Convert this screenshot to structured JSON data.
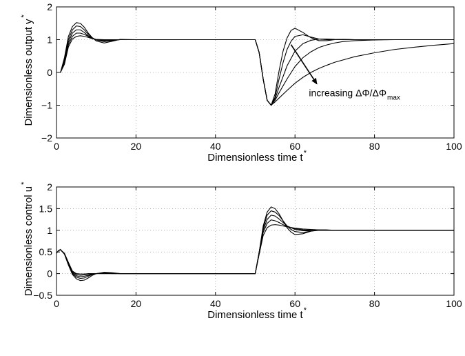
{
  "chart_data": [
    {
      "type": "line",
      "xlabel": "Dimensionless time t",
      "xlabel_sup": "*",
      "ylabel": "Dimensionless output y",
      "ylabel_sup": "*",
      "xlim": [
        0,
        100
      ],
      "ylim": [
        -2,
        2
      ],
      "xticks": [
        0,
        20,
        40,
        60,
        80,
        100
      ],
      "yticks": [
        -2,
        -1,
        0,
        1,
        2
      ],
      "xtick_labels": [
        "0",
        "20",
        "40",
        "60",
        "80",
        "100"
      ],
      "ytick_labels": [
        "−2",
        "−1",
        "0",
        "1",
        "2"
      ],
      "grid": true,
      "annotation": {
        "text": "increasing ΔΦ/ΔΦ",
        "subscript": "max",
        "arrow_from": [
          59,
          0.85
        ],
        "arrow_to": [
          65.5,
          -0.35
        ]
      },
      "series": [
        {
          "x": [
            0,
            1,
            2,
            3,
            4,
            5,
            6,
            7,
            8,
            9,
            10,
            12,
            14,
            16,
            20,
            30,
            50,
            51,
            52,
            53,
            54,
            55,
            56,
            57,
            58,
            59,
            60,
            62,
            64,
            66,
            68,
            70,
            72,
            75,
            80,
            85,
            90,
            100
          ],
          "y": [
            0,
            0,
            0.45,
            1.1,
            1.4,
            1.52,
            1.5,
            1.38,
            1.2,
            1.06,
            0.96,
            0.9,
            0.95,
            1.01,
            1.0,
            1.0,
            1.0,
            0.6,
            -0.2,
            -0.85,
            -1.0,
            -0.65,
            0.05,
            0.65,
            1.05,
            1.28,
            1.35,
            1.22,
            1.06,
            0.97,
            0.97,
            1.0,
            1.01,
            1.0,
            1.0,
            1.0,
            1.0,
            1.0
          ]
        },
        {
          "x": [
            0,
            1,
            2,
            3,
            4,
            5,
            6,
            7,
            8,
            9,
            10,
            12,
            14,
            16,
            20,
            30,
            50,
            51,
            52,
            53,
            54,
            55,
            56,
            57,
            58,
            59,
            60,
            62,
            64,
            66,
            68,
            70,
            75,
            80,
            90,
            100
          ],
          "y": [
            0,
            0,
            0.4,
            1.0,
            1.3,
            1.42,
            1.4,
            1.3,
            1.16,
            1.06,
            0.99,
            0.94,
            0.97,
            1.0,
            1.0,
            1.0,
            1.0,
            0.6,
            -0.2,
            -0.85,
            -1.0,
            -0.75,
            -0.2,
            0.3,
            0.7,
            0.95,
            1.1,
            1.15,
            1.08,
            1.02,
            1.0,
            1.0,
            1.0,
            1.0,
            1.0,
            1.0
          ]
        },
        {
          "x": [
            0,
            1,
            2,
            3,
            4,
            5,
            6,
            7,
            8,
            9,
            10,
            12,
            14,
            16,
            20,
            30,
            50,
            51,
            52,
            53,
            54,
            55,
            56,
            58,
            60,
            62,
            64,
            66,
            68,
            70,
            75,
            80,
            90,
            100
          ],
          "y": [
            0,
            0,
            0.35,
            0.92,
            1.2,
            1.3,
            1.3,
            1.22,
            1.12,
            1.05,
            1.0,
            0.97,
            0.98,
            1.0,
            1.0,
            1.0,
            1.0,
            0.6,
            -0.2,
            -0.85,
            -1.0,
            -0.8,
            -0.45,
            0.2,
            0.65,
            0.88,
            0.98,
            1.02,
            1.02,
            1.01,
            1.0,
            1.0,
            1.0,
            1.0
          ]
        },
        {
          "x": [
            0,
            1,
            2,
            3,
            4,
            5,
            6,
            7,
            8,
            9,
            10,
            12,
            14,
            16,
            20,
            30,
            50,
            51,
            52,
            53,
            54,
            55,
            56,
            58,
            60,
            62,
            64,
            66,
            68,
            70,
            72,
            75,
            80,
            85,
            90,
            100
          ],
          "y": [
            0,
            0,
            0.3,
            0.85,
            1.1,
            1.2,
            1.2,
            1.16,
            1.1,
            1.04,
            1.0,
            0.99,
            1.0,
            1.0,
            1.0,
            1.0,
            1.0,
            0.6,
            -0.2,
            -0.85,
            -1.0,
            -0.85,
            -0.62,
            -0.2,
            0.18,
            0.45,
            0.63,
            0.76,
            0.84,
            0.9,
            0.94,
            0.97,
            0.99,
            1.0,
            1.0,
            1.0
          ]
        },
        {
          "x": [
            0,
            1,
            2,
            3,
            4,
            5,
            6,
            7,
            8,
            9,
            10,
            12,
            14,
            16,
            20,
            30,
            50,
            51,
            52,
            53,
            54,
            55,
            56,
            58,
            60,
            62,
            64,
            66,
            68,
            70,
            75,
            80,
            85,
            90,
            95,
            100
          ],
          "y": [
            0,
            0,
            0.25,
            0.78,
            1.02,
            1.1,
            1.12,
            1.1,
            1.07,
            1.03,
            1.01,
            1.0,
            1.0,
            1.0,
            1.0,
            1.0,
            1.0,
            0.6,
            -0.2,
            -0.85,
            -1.0,
            -0.9,
            -0.78,
            -0.55,
            -0.33,
            -0.15,
            0.0,
            0.12,
            0.22,
            0.31,
            0.48,
            0.6,
            0.7,
            0.77,
            0.83,
            0.88
          ]
        }
      ]
    },
    {
      "type": "line",
      "xlabel": "Dimensionless time t",
      "xlabel_sup": "*",
      "ylabel": "Dimensionless control u",
      "ylabel_sup": "*",
      "xlim": [
        0,
        100
      ],
      "ylim": [
        -0.5,
        2
      ],
      "xticks": [
        0,
        20,
        40,
        60,
        80,
        100
      ],
      "yticks": [
        -0.5,
        0,
        0.5,
        1,
        1.5,
        2
      ],
      "xtick_labels": [
        "0",
        "20",
        "40",
        "60",
        "80",
        "100"
      ],
      "ytick_labels": [
        "−0.5",
        "0",
        "0.5",
        "1",
        "1.5",
        "2"
      ],
      "grid": true,
      "series": [
        {
          "x": [
            0,
            0.5,
            1,
            2,
            3,
            4,
            5,
            6,
            7,
            8,
            9,
            10,
            12,
            14,
            16,
            18,
            20,
            30,
            50,
            51,
            52,
            53,
            54,
            55,
            56,
            57,
            58,
            59,
            60,
            62,
            64,
            66,
            68,
            70,
            75,
            80,
            90,
            100
          ],
          "y": [
            0.47,
            0.53,
            0.56,
            0.45,
            0.2,
            -0.02,
            -0.12,
            -0.16,
            -0.15,
            -0.1,
            -0.04,
            0.0,
            0.03,
            0.02,
            0.0,
            0.0,
            0.0,
            0.0,
            0.0,
            0.5,
            1.1,
            1.42,
            1.54,
            1.5,
            1.38,
            1.22,
            1.06,
            0.96,
            0.9,
            0.92,
            0.98,
            1.01,
            1.01,
            1.0,
            1.0,
            1.0,
            1.0,
            1.0
          ]
        },
        {
          "x": [
            0,
            0.5,
            1,
            2,
            3,
            4,
            5,
            6,
            7,
            8,
            9,
            10,
            12,
            14,
            16,
            20,
            30,
            50,
            51,
            52,
            53,
            54,
            55,
            56,
            57,
            58,
            59,
            60,
            62,
            64,
            66,
            70,
            75,
            80,
            90,
            100
          ],
          "y": [
            0.47,
            0.53,
            0.55,
            0.45,
            0.2,
            0.0,
            -0.08,
            -0.11,
            -0.1,
            -0.06,
            -0.02,
            0.0,
            0.02,
            0.01,
            0.0,
            0.0,
            0.0,
            0.0,
            0.5,
            1.05,
            1.35,
            1.45,
            1.42,
            1.34,
            1.22,
            1.1,
            1.02,
            0.97,
            0.95,
            0.98,
            1.0,
            1.0,
            1.0,
            1.0,
            1.0,
            1.0
          ]
        },
        {
          "x": [
            0,
            0.5,
            1,
            2,
            3,
            4,
            5,
            6,
            7,
            8,
            10,
            12,
            14,
            20,
            30,
            50,
            51,
            52,
            53,
            54,
            55,
            56,
            57,
            58,
            60,
            62,
            64,
            66,
            70,
            75,
            80,
            90,
            100
          ],
          "y": [
            0.47,
            0.53,
            0.55,
            0.46,
            0.22,
            0.02,
            -0.05,
            -0.07,
            -0.06,
            -0.04,
            0.0,
            0.01,
            0.0,
            0.0,
            0.0,
            0.0,
            0.5,
            1.0,
            1.25,
            1.35,
            1.33,
            1.26,
            1.18,
            1.1,
            1.02,
            0.99,
            0.99,
            1.0,
            1.0,
            1.0,
            1.0,
            1.0,
            1.0
          ]
        },
        {
          "x": [
            0,
            0.5,
            1,
            2,
            3,
            4,
            5,
            6,
            7,
            8,
            10,
            12,
            14,
            20,
            30,
            50,
            51,
            52,
            53,
            54,
            55,
            56,
            57,
            58,
            60,
            62,
            64,
            66,
            70,
            75,
            80,
            90,
            100
          ],
          "y": [
            0.47,
            0.53,
            0.55,
            0.46,
            0.24,
            0.04,
            -0.02,
            -0.04,
            -0.03,
            -0.02,
            0.0,
            0.0,
            0.0,
            0.0,
            0.0,
            0.0,
            0.48,
            0.95,
            1.16,
            1.24,
            1.22,
            1.18,
            1.13,
            1.09,
            1.04,
            1.01,
            1.0,
            1.0,
            1.0,
            1.0,
            1.0,
            1.0,
            1.0
          ]
        },
        {
          "x": [
            0,
            0.5,
            1,
            2,
            3,
            4,
            5,
            6,
            7,
            8,
            10,
            12,
            20,
            30,
            50,
            51,
            52,
            53,
            54,
            55,
            56,
            57,
            58,
            60,
            62,
            64,
            66,
            70,
            75,
            80,
            90,
            100
          ],
          "y": [
            0.47,
            0.53,
            0.55,
            0.47,
            0.26,
            0.06,
            0.0,
            -0.01,
            -0.01,
            0.0,
            0.0,
            0.0,
            0.0,
            0.0,
            0.0,
            0.45,
            0.88,
            1.06,
            1.12,
            1.13,
            1.12,
            1.1,
            1.08,
            1.05,
            1.03,
            1.02,
            1.01,
            1.0,
            1.0,
            1.0,
            1.0,
            1.0
          ]
        }
      ]
    }
  ]
}
